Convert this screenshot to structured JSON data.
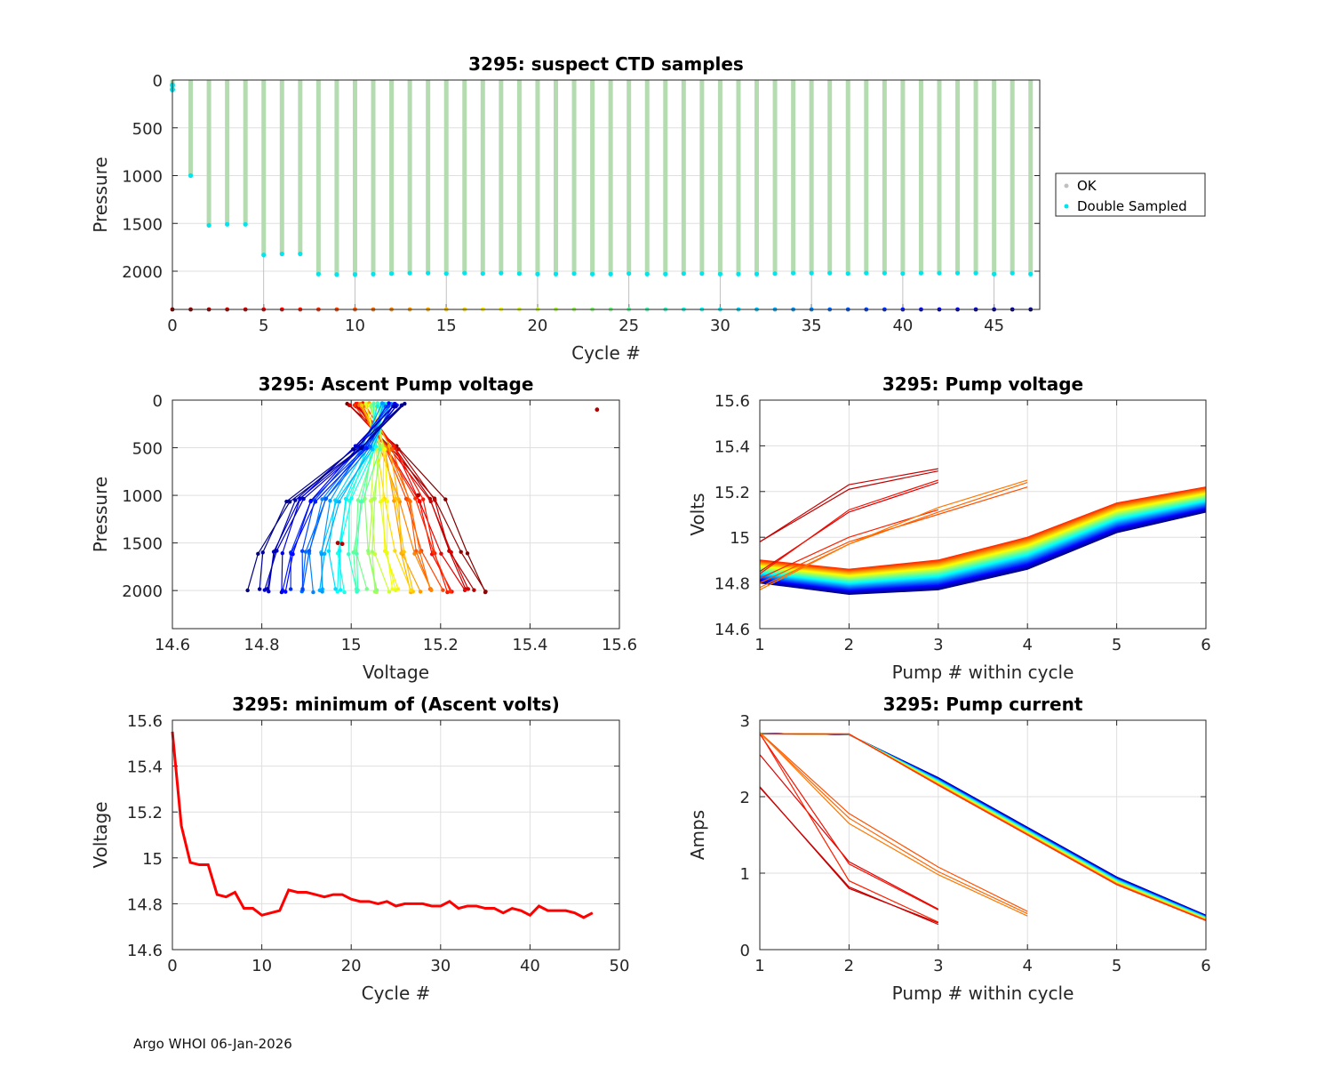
{
  "footer": "Argo WHOI 06-Jan-2026",
  "chart_data": [
    {
      "id": "ctd",
      "type": "scatter",
      "title": "3295: suspect CTD samples",
      "xlabel": "Cycle #",
      "ylabel": "Pressure",
      "xlim": [
        0,
        47.5
      ],
      "ylim": [
        0,
        2400
      ],
      "y_reversed": true,
      "xticks": [
        0,
        5,
        10,
        15,
        20,
        25,
        30,
        35,
        40,
        45
      ],
      "yticks": [
        0,
        500,
        1000,
        1500,
        2000
      ],
      "legend": {
        "placement": "right",
        "entries": [
          {
            "label": "OK",
            "color": "#c0c0c0"
          },
          {
            "label": "Double Sampled",
            "color": "#00e5ee"
          }
        ]
      },
      "ok_color": "#b5dbb1",
      "double_color": "#00e5ee",
      "cycles": [
        0,
        1,
        2,
        3,
        4,
        5,
        6,
        7,
        8,
        9,
        10,
        11,
        12,
        13,
        14,
        15,
        16,
        17,
        18,
        19,
        20,
        21,
        22,
        23,
        24,
        25,
        26,
        27,
        28,
        29,
        30,
        31,
        32,
        33,
        34,
        35,
        36,
        37,
        38,
        39,
        40,
        41,
        42,
        43,
        44,
        45,
        46,
        47
      ],
      "max_pressure": [
        100,
        1000,
        1520,
        1510,
        1510,
        1830,
        1820,
        1820,
        2030,
        2035,
        2035,
        2030,
        2025,
        2020,
        2020,
        2025,
        2020,
        2025,
        2020,
        2025,
        2030,
        2030,
        2025,
        2030,
        2030,
        2025,
        2030,
        2030,
        2025,
        2025,
        2030,
        2030,
        2030,
        2025,
        2020,
        2020,
        2020,
        2025,
        2020,
        2020,
        2025,
        2020,
        2020,
        2020,
        2020,
        2030,
        2020,
        2030
      ],
      "bottom_marker_pressure": 2400
    },
    {
      "id": "ascent",
      "type": "line",
      "title": "3295: Ascent Pump voltage",
      "xlabel": "Voltage",
      "ylabel": "Pressure",
      "xlim": [
        14.6,
        15.6
      ],
      "ylim": [
        0,
        2400
      ],
      "y_reversed": true,
      "xticks": [
        14.6,
        14.8,
        15,
        15.2,
        15.4,
        15.6
      ],
      "yticks": [
        0,
        500,
        1000,
        1500,
        2000
      ],
      "cycle_count": 48,
      "pressure_levels": [
        2000,
        1600,
        1050,
        500,
        50
      ],
      "first_cycle_profile": [
        15.3,
        15.25,
        15.2,
        15.1,
        15.0
      ],
      "last_cycle_profile": [
        14.78,
        14.8,
        14.86,
        15.01,
        15.11
      ],
      "outliers": [
        {
          "voltage": 15.55,
          "pressure": 100
        },
        {
          "voltage": 15.15,
          "pressure": 1000
        },
        {
          "voltage": 14.97,
          "pressure": 1500
        },
        {
          "voltage": 14.98,
          "pressure": 1510
        }
      ]
    },
    {
      "id": "pumpv",
      "type": "line",
      "title": "3295: Pump voltage",
      "xlabel": "Pump # within cycle",
      "ylabel": "Volts",
      "xlim": [
        1,
        6
      ],
      "ylim": [
        14.6,
        15.6
      ],
      "xticks": [
        1,
        2,
        3,
        4,
        5,
        6
      ],
      "yticks": [
        14.6,
        14.8,
        15,
        15.2,
        15.4,
        15.6
      ],
      "series": [
        {
          "name": "cycle 0",
          "color": "#bf0000",
          "x": [
            1,
            2,
            3
          ],
          "values": [
            14.98,
            15.21,
            15.29
          ]
        },
        {
          "name": "cycle 1",
          "color": "#cc0000",
          "x": [
            1,
            2,
            3
          ],
          "values": [
            14.98,
            15.23,
            15.3
          ]
        },
        {
          "name": "cycle 2",
          "color": "#e00000",
          "x": [
            1,
            2,
            3
          ],
          "values": [
            14.85,
            15.11,
            15.24
          ]
        },
        {
          "name": "cycle 3",
          "color": "#f21000",
          "x": [
            1,
            2,
            3
          ],
          "values": [
            14.84,
            15.12,
            15.25
          ]
        },
        {
          "name": "cycle 4",
          "color": "#ff2000",
          "x": [
            1,
            2,
            3
          ],
          "values": [
            14.82,
            15.0,
            15.12
          ]
        },
        {
          "name": "cycle 5",
          "color": "#ff5000",
          "x": [
            1,
            2,
            3,
            4
          ],
          "values": [
            14.8,
            14.98,
            15.1,
            15.22
          ]
        },
        {
          "name": "cycle 6",
          "color": "#ff6400",
          "x": [
            1,
            2,
            3,
            4
          ],
          "values": [
            14.78,
            14.97,
            15.11,
            15.24
          ]
        },
        {
          "name": "cycle 7",
          "color": "#ff7800",
          "x": [
            1,
            2,
            3,
            4
          ],
          "values": [
            14.77,
            14.97,
            15.13,
            15.25
          ]
        }
      ],
      "six_pump_cycles": {
        "from_cycle": 8,
        "to_cycle": 47,
        "first_values": [
          14.9,
          14.86,
          14.9,
          15.0,
          15.15,
          15.22
        ],
        "last_values": [
          14.8,
          14.75,
          14.77,
          14.86,
          15.02,
          15.11
        ]
      }
    },
    {
      "id": "minv",
      "type": "line",
      "title": "3295: minimum of (Ascent volts)",
      "xlabel": "Cycle #",
      "ylabel": "Voltage",
      "xlim": [
        0,
        50
      ],
      "ylim": [
        14.6,
        15.6
      ],
      "xticks": [
        0,
        10,
        20,
        30,
        40,
        50
      ],
      "yticks": [
        14.6,
        14.8,
        15,
        15.2,
        15.4,
        15.6
      ],
      "color": "#ff0000",
      "x": [
        0,
        1,
        2,
        3,
        4,
        5,
        6,
        7,
        8,
        9,
        10,
        11,
        12,
        13,
        14,
        15,
        16,
        17,
        18,
        19,
        20,
        21,
        22,
        23,
        24,
        25,
        26,
        27,
        28,
        29,
        30,
        31,
        32,
        33,
        34,
        35,
        36,
        37,
        38,
        39,
        40,
        41,
        42,
        43,
        44,
        45,
        46,
        47
      ],
      "values": [
        15.55,
        15.14,
        14.98,
        14.97,
        14.97,
        14.84,
        14.83,
        14.85,
        14.78,
        14.78,
        14.75,
        14.76,
        14.77,
        14.86,
        14.85,
        14.85,
        14.84,
        14.83,
        14.84,
        14.84,
        14.82,
        14.81,
        14.81,
        14.8,
        14.81,
        14.79,
        14.8,
        14.8,
        14.8,
        14.79,
        14.79,
        14.81,
        14.78,
        14.79,
        14.79,
        14.78,
        14.78,
        14.76,
        14.78,
        14.77,
        14.75,
        14.79,
        14.77,
        14.77,
        14.77,
        14.76,
        14.74,
        14.76
      ]
    },
    {
      "id": "pumpi",
      "type": "line",
      "title": "3295: Pump current",
      "xlabel": "Pump # within cycle",
      "ylabel": "Amps",
      "xlim": [
        1,
        6
      ],
      "ylim": [
        0,
        3
      ],
      "xticks": [
        1,
        2,
        3,
        4,
        5,
        6
      ],
      "yticks": [
        0,
        1,
        2,
        3
      ],
      "series": [
        {
          "name": "cycle 0",
          "color": "#bf0000",
          "x": [
            1,
            2,
            3
          ],
          "values": [
            2.13,
            0.8,
            0.35
          ]
        },
        {
          "name": "cycle 1",
          "color": "#cc0000",
          "x": [
            1,
            2,
            3
          ],
          "values": [
            2.12,
            0.82,
            0.33
          ]
        },
        {
          "name": "cycle 2",
          "color": "#e00000",
          "x": [
            1,
            2,
            3
          ],
          "values": [
            2.55,
            1.15,
            0.53
          ]
        },
        {
          "name": "cycle 3",
          "color": "#f21000",
          "x": [
            1,
            2,
            3
          ],
          "values": [
            2.82,
            1.12,
            0.52
          ]
        },
        {
          "name": "cycle 4",
          "color": "#ff2000",
          "x": [
            1,
            2,
            3
          ],
          "values": [
            2.83,
            0.9,
            0.36
          ]
        },
        {
          "name": "cycle 5",
          "color": "#ff5000",
          "x": [
            1,
            2,
            3,
            4
          ],
          "values": [
            2.84,
            1.78,
            1.08,
            0.5
          ]
        },
        {
          "name": "cycle 6",
          "color": "#ff6400",
          "x": [
            1,
            2,
            3,
            4
          ],
          "values": [
            2.83,
            1.72,
            1.02,
            0.47
          ]
        },
        {
          "name": "cycle 7",
          "color": "#ff7800",
          "x": [
            1,
            2,
            3,
            4
          ],
          "values": [
            2.84,
            1.65,
            0.98,
            0.44
          ]
        }
      ],
      "six_pump_cycles": {
        "from_cycle": 8,
        "to_cycle": 47,
        "first_values": [
          2.82,
          2.82,
          2.15,
          1.5,
          0.85,
          0.38
        ],
        "last_values": [
          2.83,
          2.81,
          2.25,
          1.6,
          0.95,
          0.45
        ]
      }
    }
  ]
}
